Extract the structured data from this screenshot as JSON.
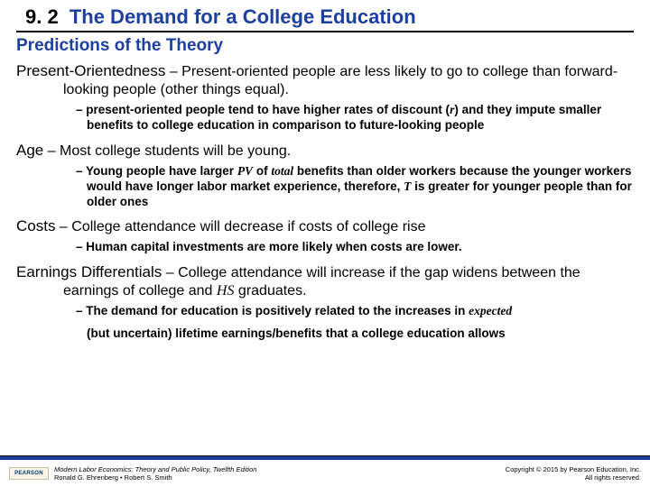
{
  "heading": {
    "num": "9. 2",
    "title": "The Demand for a College Education"
  },
  "subheading": "Predictions of the Theory",
  "items": [
    {
      "lead": "Present-Orientedness",
      "body": " – Present-oriented people are less likely to go to college than forward-looking people (other things equal).",
      "sub": {
        "pre": "– present-oriented people tend to have higher rates of discount (",
        "ital1": "r",
        "post": ") and they impute smaller benefits to college education in comparison to future-looking people"
      }
    },
    {
      "lead": "Age",
      "body": " – Most college students will be young.",
      "sub": {
        "pre": "– Young people have larger ",
        "ital1": "PV",
        "mid1": " of ",
        "ital2": "total",
        "mid2": " benefits than older workers because the younger workers would have longer labor market experience, therefore, ",
        "ital3": "T",
        "post": " is greater for younger people than for older ones"
      }
    },
    {
      "lead": "Costs",
      "body": " – College attendance will decrease if costs of college rise",
      "sub": {
        "pre": "– Human capital investments are more likely when costs are lower."
      }
    },
    {
      "lead": "Earnings Differentials",
      "body_pre": " – College attendance will increase if the gap widens between the earnings of college and ",
      "body_ital": "HS",
      "body_post": " graduates.",
      "sub": {
        "pre": "– The demand for education is positively related to the increases in ",
        "ital1": "expected"
      },
      "sub2": "(but uncertain) lifetime earnings/benefits that a college education allows"
    }
  ],
  "footer": {
    "logo": "PEARSON",
    "left1": "Modern Labor Economics: Theory and Public Policy, Twelfth Edition",
    "left2": "Ronald G. Ehrenberg • Robert S. Smith",
    "right1": "Copyright © 2015 by Pearson Education, Inc.",
    "right2": "All rights reserved."
  },
  "colors": {
    "accent": "#1d3f9e",
    "text": "#000000",
    "bg": "#ffffff"
  }
}
